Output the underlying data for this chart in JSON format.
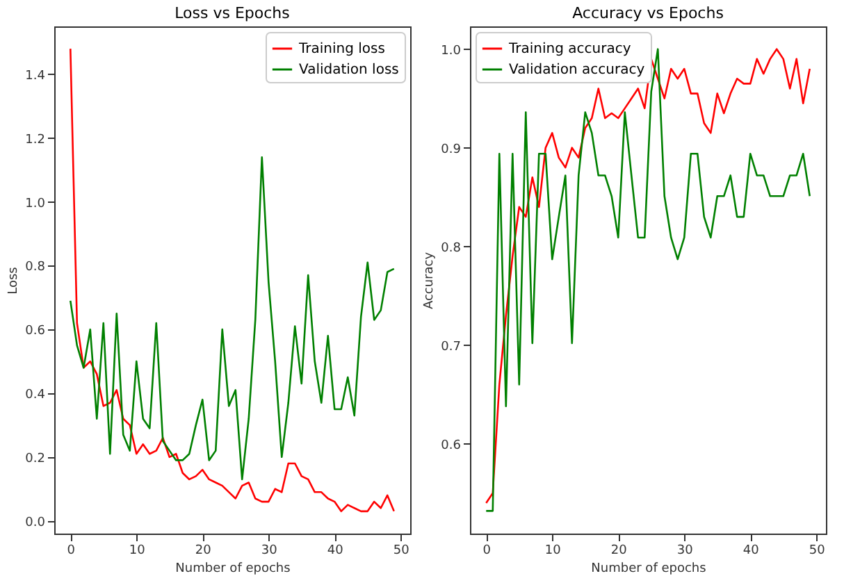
{
  "chart_data": [
    {
      "type": "line",
      "title": "Loss vs Epochs",
      "xlabel": "Number of epochs",
      "ylabel": "Loss",
      "x": [
        0,
        1,
        2,
        3,
        4,
        5,
        6,
        7,
        8,
        9,
        10,
        11,
        12,
        13,
        14,
        15,
        16,
        17,
        18,
        19,
        20,
        21,
        22,
        23,
        24,
        25,
        26,
        27,
        28,
        29,
        30,
        31,
        32,
        33,
        34,
        35,
        36,
        37,
        38,
        39,
        40,
        41,
        42,
        43,
        44,
        45,
        46,
        47,
        48,
        49
      ],
      "series": [
        {
          "name": "Training loss",
          "color": "#ff0000",
          "values": [
            1.48,
            0.62,
            0.48,
            0.5,
            0.46,
            0.36,
            0.37,
            0.41,
            0.32,
            0.3,
            0.21,
            0.24,
            0.21,
            0.22,
            0.26,
            0.2,
            0.21,
            0.15,
            0.13,
            0.14,
            0.16,
            0.13,
            0.12,
            0.11,
            0.09,
            0.07,
            0.11,
            0.12,
            0.07,
            0.06,
            0.06,
            0.1,
            0.09,
            0.18,
            0.18,
            0.14,
            0.13,
            0.09,
            0.09,
            0.07,
            0.06,
            0.03,
            0.05,
            0.04,
            0.03,
            0.03,
            0.06,
            0.04,
            0.08,
            0.03
          ]
        },
        {
          "name": "Validation loss",
          "color": "#008000",
          "values": [
            0.69,
            0.55,
            0.48,
            0.6,
            0.32,
            0.62,
            0.21,
            0.65,
            0.27,
            0.22,
            0.5,
            0.32,
            0.29,
            0.62,
            0.25,
            0.22,
            0.19,
            0.19,
            0.21,
            0.3,
            0.38,
            0.19,
            0.22,
            0.6,
            0.36,
            0.41,
            0.13,
            0.32,
            0.63,
            1.14,
            0.75,
            0.5,
            0.2,
            0.37,
            0.61,
            0.43,
            0.77,
            0.5,
            0.37,
            0.58,
            0.35,
            0.35,
            0.45,
            0.33,
            0.64,
            0.81,
            0.63,
            0.66,
            0.78,
            0.79
          ]
        }
      ],
      "xlim": [
        -2.45,
        51.45
      ],
      "xticks": [
        0,
        10,
        20,
        30,
        40,
        50
      ],
      "ylim": [
        -0.04,
        1.55
      ],
      "yticks": [
        {
          "value": 0,
          "label": "0.0"
        },
        {
          "value": 0.2,
          "label": "0.2"
        },
        {
          "value": 0.4,
          "label": "0.4"
        },
        {
          "value": 0.6,
          "label": "0.6"
        },
        {
          "value": 0.8,
          "label": "0.8"
        },
        {
          "value": 1,
          "label": "1.0"
        },
        {
          "value": 1.2,
          "label": "1.2"
        },
        {
          "value": 1.4,
          "label": "1.4"
        }
      ],
      "legend": "top right",
      "grid": false
    },
    {
      "type": "line",
      "title": "Accuracy vs Epochs",
      "xlabel": "Number of epochs",
      "ylabel": "Accuracy",
      "x": [
        0,
        1,
        2,
        3,
        4,
        5,
        6,
        7,
        8,
        9,
        10,
        11,
        12,
        13,
        14,
        15,
        16,
        17,
        18,
        19,
        20,
        21,
        22,
        23,
        24,
        25,
        26,
        27,
        28,
        29,
        30,
        31,
        32,
        33,
        34,
        35,
        36,
        37,
        38,
        39,
        40,
        41,
        42,
        43,
        44,
        45,
        46,
        47,
        48,
        49
      ],
      "series": [
        {
          "name": "Training accuracy",
          "color": "#ff0000",
          "values": [
            0.54,
            0.55,
            0.66,
            0.73,
            0.79,
            0.84,
            0.83,
            0.87,
            0.84,
            0.9,
            0.915,
            0.89,
            0.88,
            0.9,
            0.89,
            0.92,
            0.93,
            0.96,
            0.93,
            0.935,
            0.93,
            0.94,
            0.95,
            0.96,
            0.94,
            0.99,
            0.97,
            0.95,
            0.98,
            0.97,
            0.98,
            0.955,
            0.955,
            0.925,
            0.915,
            0.955,
            0.935,
            0.955,
            0.97,
            0.965,
            0.965,
            0.99,
            0.975,
            0.99,
            1.0,
            0.99,
            0.96,
            0.99,
            0.945,
            0.98
          ]
        },
        {
          "name": "Validation accuracy",
          "color": "#008000",
          "values": [
            0.532,
            0.532,
            0.894,
            0.638,
            0.894,
            0.66,
            0.936,
            0.702,
            0.894,
            0.894,
            0.787,
            0.83,
            0.872,
            0.702,
            0.872,
            0.936,
            0.915,
            0.872,
            0.872,
            0.851,
            0.809,
            0.936,
            0.872,
            0.809,
            0.809,
            0.957,
            1.0,
            0.851,
            0.809,
            0.787,
            0.809,
            0.894,
            0.894,
            0.83,
            0.809,
            0.851,
            0.851,
            0.872,
            0.83,
            0.83,
            0.894,
            0.872,
            0.872,
            0.851,
            0.851,
            0.851,
            0.872,
            0.872,
            0.894,
            0.851
          ]
        }
      ],
      "xlim": [
        -2.45,
        51.45
      ],
      "xticks": [
        0,
        10,
        20,
        30,
        40,
        50
      ],
      "ylim": [
        0.509,
        1.023
      ],
      "yticks": [
        {
          "value": 0.6,
          "label": "0.6"
        },
        {
          "value": 0.7,
          "label": "0.7"
        },
        {
          "value": 0.8,
          "label": "0.8"
        },
        {
          "value": 0.9,
          "label": "0.9"
        },
        {
          "value": 1,
          "label": "1.0"
        }
      ],
      "legend": "top left",
      "grid": false
    }
  ]
}
